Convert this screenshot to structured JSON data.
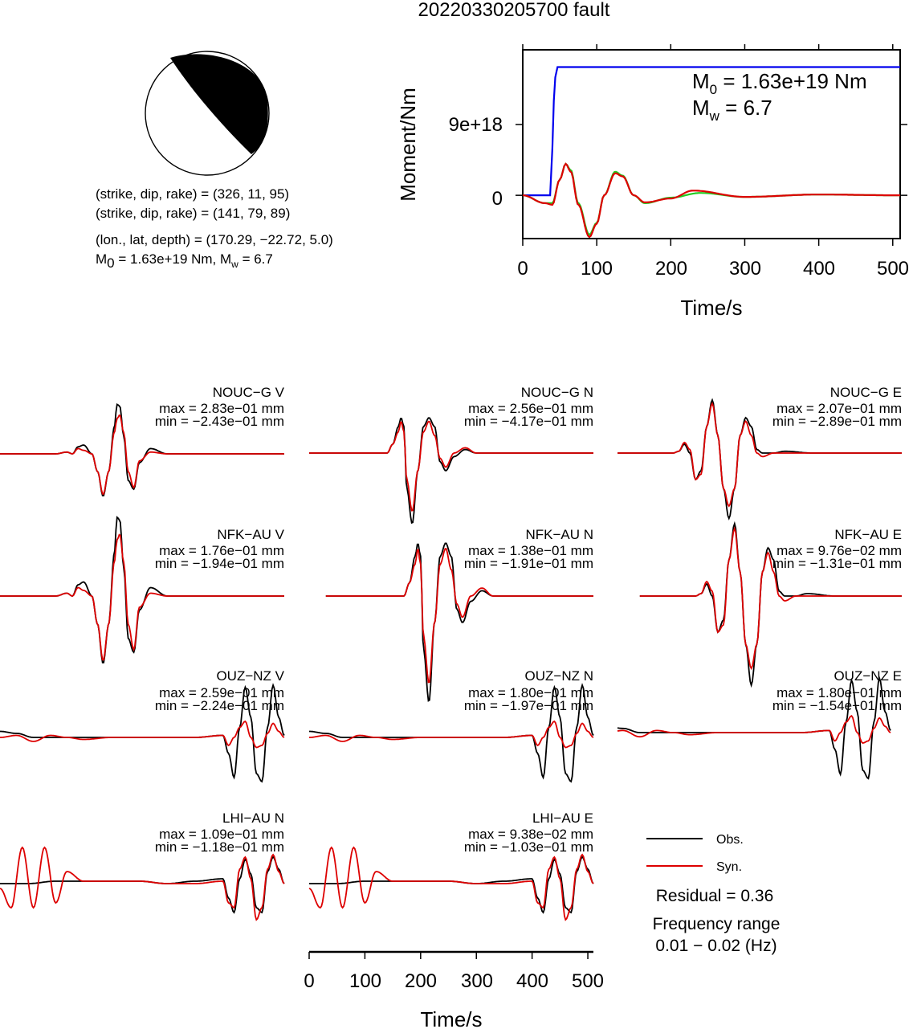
{
  "title": "20220330205700 fault",
  "solution": {
    "line1": "(strike, dip, rake) = (326, 11, 95)",
    "line2": "(strike, dip, rake) = (141, 79, 89)",
    "line3": "(lon., lat, depth) = (170.29, −22.72, 5.0)",
    "m0_prefix": "M",
    "m0_sub": "0",
    "m0_value": " = 1.63e+19 Nm, M",
    "mw_sub": "w",
    "mw_value": " = 6.7"
  },
  "moment_plot": {
    "ylabel": "Moment/Nm",
    "xlabel": "Time/s",
    "m0_label": "M",
    "m0_sub": "0",
    "m0_text": " = 1.63e+19 Nm",
    "mw_label": "M",
    "mw_sub": "w",
    "mw_text": " = 6.7",
    "ytick_labels": [
      "9e+18",
      "0"
    ],
    "xtick_labels": [
      "0",
      "100",
      "200",
      "300",
      "400",
      "500"
    ],
    "colors": {
      "moment": "#0000ee",
      "rate_a": "#22cc22",
      "rate_b": "#dd0000"
    }
  },
  "stations": [
    {
      "name": "NOUC−G V",
      "max": "max = 2.83e−01 mm",
      "min": "min = −2.43e−01 mm"
    },
    {
      "name": "NOUC−G N",
      "max": "max = 2.56e−01 mm",
      "min": "min = −4.17e−01 mm"
    },
    {
      "name": "NOUC−G E",
      "max": "max = 2.07e−01 mm",
      "min": "min = −2.89e−01 mm"
    },
    {
      "name": "NFK−AU V",
      "max": "max = 1.76e−01 mm",
      "min": "min = −1.94e−01 mm"
    },
    {
      "name": "NFK−AU N",
      "max": "max = 1.38e−01 mm",
      "min": "min = −1.91e−01 mm"
    },
    {
      "name": "NFK−AU E",
      "max": "max = 9.76e−02 mm",
      "min": "min = −1.31e−01 mm"
    },
    {
      "name": "OUZ−NZ V",
      "max": "max = 2.59e−01 mm",
      "min": "min = −2.24e−01 mm"
    },
    {
      "name": "OUZ−NZ N",
      "max": "max = 1.80e−01 mm",
      "min": "min = −1.97e−01 mm"
    },
    {
      "name": "OUZ−NZ E",
      "max": "max = 1.80e−01 mm",
      "min": "min = −1.54e−01 mm"
    },
    {
      "name": "LHI−AU N",
      "max": "max = 1.09e−01 mm",
      "min": "min = −1.18e−01 mm"
    },
    {
      "name": "LHI−AU E",
      "max": "max = 9.38e−02 mm",
      "min": "min = −1.03e−01 mm"
    }
  ],
  "waveform_axis": {
    "xlabel": "Time/s",
    "xtick_labels": [
      "0",
      "100",
      "200",
      "300",
      "400",
      "500"
    ]
  },
  "legend": {
    "obs": "Obs.",
    "syn": "Syn.",
    "obs_color": "#000000",
    "syn_color": "#dd0000"
  },
  "residual": "Residual = 0.36",
  "freq_title": "Frequency range",
  "freq_value": "0.01 − 0.02 (Hz)",
  "chart_data": [
    {
      "type": "line",
      "title": "",
      "xlabel": "Time/s",
      "ylabel": "Moment/Nm",
      "xlim": [
        0,
        510
      ],
      "ylim": [
        -5.5e+18,
        1.85e+19
      ],
      "series": [
        {
          "x": [
            0,
            37,
            40,
            42,
            44,
            47,
            48,
            510
          ],
          "values": [
            0,
            0,
            6e+18,
            1.2e+19,
            1.5e+19,
            1.63e+19,
            1.63e+19,
            1.63e+19
          ]
        },
        {
          "x": [
            0,
            30,
            40,
            50,
            58,
            65,
            75,
            90,
            100,
            110,
            125,
            135,
            150,
            165,
            200,
            240,
            300,
            400,
            510
          ],
          "values": [
            0,
            -1e+18,
            -1e+18,
            2e+18,
            4e+18,
            3.2e+18,
            -1e+18,
            -5e+18,
            -3.5e+18,
            0,
            3e+18,
            2.5e+18,
            0,
            -1e+18,
            -3e+17,
            3e+17,
            -2e+17,
            1e+17,
            0
          ]
        },
        {
          "x": [
            0,
            30,
            40,
            50,
            58,
            65,
            75,
            90,
            100,
            110,
            125,
            135,
            150,
            165,
            200,
            230,
            300,
            400,
            510
          ],
          "values": [
            0,
            -1e+18,
            -1.2e+18,
            2e+18,
            4e+18,
            3e+18,
            -1.2e+18,
            -5.3e+18,
            -3.6e+18,
            0,
            2.8e+18,
            2.4e+18,
            0,
            -9e+17,
            -4e+17,
            6e+17,
            -2e+17,
            1e+17,
            0
          ]
        }
      ]
    },
    {
      "type": "line",
      "title": "NOUC−G V",
      "xlim": [
        0,
        510
      ],
      "ylim": [
        -0.43,
        0.43
      ],
      "series": [
        {
          "name": "Obs.",
          "x": [
            0,
            100,
            120,
            130,
            140,
            150,
            165,
            175,
            185,
            195,
            205,
            210,
            215,
            222,
            230,
            240,
            250,
            270,
            300,
            350,
            400,
            510
          ],
          "values": [
            0,
            0,
            0.01,
            0,
            0.04,
            0.05,
            0,
            -0.1,
            -0.24,
            -0.1,
            0.15,
            0.28,
            0.27,
            0.1,
            -0.15,
            -0.2,
            -0.05,
            0.03,
            0,
            0,
            0,
            0
          ]
        },
        {
          "name": "Syn.",
          "x": [
            0,
            100,
            120,
            130,
            140,
            150,
            165,
            175,
            185,
            195,
            205,
            210,
            215,
            222,
            230,
            240,
            250,
            270,
            300,
            350,
            400,
            510
          ],
          "values": [
            0,
            0,
            0.01,
            0,
            0.03,
            0.02,
            0,
            -0.1,
            -0.23,
            -0.1,
            0.12,
            0.2,
            0.22,
            0.12,
            -0.1,
            -0.19,
            -0.04,
            0.01,
            0,
            0,
            0,
            0
          ]
        }
      ]
    },
    {
      "type": "line",
      "title": "NOUC−G N",
      "xlim": [
        0,
        510
      ],
      "ylim": [
        -0.43,
        0.43
      ],
      "series": [
        {
          "name": "Obs.",
          "x": [
            0,
            100,
            140,
            150,
            160,
            165,
            170,
            175,
            185,
            195,
            205,
            215,
            225,
            235,
            245,
            260,
            280,
            300,
            350,
            400,
            510
          ],
          "values": [
            0,
            0,
            0,
            0.05,
            0.15,
            0.2,
            0.15,
            -0.2,
            -0.4,
            -0.1,
            0.15,
            0.2,
            0.15,
            -0.05,
            -0.1,
            -0.02,
            0.02,
            0,
            0,
            0,
            0
          ]
        },
        {
          "name": "Syn.",
          "x": [
            0,
            100,
            140,
            150,
            160,
            165,
            170,
            175,
            185,
            195,
            205,
            215,
            225,
            235,
            245,
            260,
            280,
            300,
            350,
            400,
            510
          ],
          "values": [
            0,
            0,
            0,
            0.05,
            0.12,
            0.18,
            0.12,
            -0.15,
            -0.33,
            -0.1,
            0.12,
            0.18,
            0.1,
            -0.03,
            -0.08,
            0,
            0.03,
            0,
            0,
            0,
            0
          ]
        }
      ]
    },
    {
      "type": "line",
      "title": "NOUC−G E",
      "xlim": [
        0,
        510
      ],
      "ylim": [
        -0.43,
        0.43
      ],
      "series": [
        {
          "name": "Obs.",
          "x": [
            0,
            100,
            110,
            120,
            130,
            140,
            150,
            160,
            170,
            180,
            190,
            200,
            210,
            220,
            230,
            240,
            250,
            260,
            280,
            300,
            350,
            400,
            510
          ],
          "values": [
            0,
            0,
            0.01,
            0.05,
            0,
            -0.15,
            -0.1,
            0.15,
            0.3,
            0.1,
            -0.2,
            -0.37,
            -0.2,
            0.1,
            0.2,
            0.15,
            0.02,
            0,
            0,
            0.01,
            0,
            0,
            0
          ]
        },
        {
          "name": "Syn.",
          "x": [
            0,
            100,
            110,
            120,
            130,
            140,
            150,
            160,
            170,
            180,
            190,
            200,
            210,
            220,
            230,
            240,
            250,
            260,
            280,
            300,
            350,
            400,
            510
          ],
          "values": [
            0,
            0,
            0.01,
            0.06,
            0.02,
            -0.15,
            -0.12,
            0.15,
            0.28,
            0.1,
            -0.2,
            -0.3,
            -0.2,
            0.1,
            0.18,
            0.1,
            0,
            -0.02,
            0,
            0,
            0,
            0,
            0
          ]
        }
      ]
    },
    {
      "type": "line",
      "title": "OUZ−NZ V",
      "xlim": [
        0,
        510
      ],
      "ylim": [
        -0.3,
        0.3
      ],
      "series": [
        {
          "name": "Obs.",
          "x": [
            0,
            30,
            60,
            90,
            120,
            150,
            200,
            250,
            300,
            350,
            400,
            410,
            420,
            430,
            440,
            450,
            460,
            470,
            480,
            490,
            500,
            510
          ],
          "values": [
            0.03,
            0.02,
            0,
            0,
            0,
            0,
            0,
            0,
            0,
            0,
            0.01,
            -0.08,
            -0.2,
            0.05,
            0.25,
            0.1,
            -0.18,
            -0.22,
            0.05,
            0.26,
            0.1,
            0.01
          ]
        },
        {
          "name": "Syn.",
          "x": [
            0,
            30,
            60,
            90,
            120,
            150,
            200,
            250,
            300,
            350,
            400,
            410,
            420,
            430,
            440,
            450,
            460,
            470,
            480,
            490,
            500,
            510
          ],
          "values": [
            0,
            0.01,
            -0.02,
            0.01,
            0,
            -0.01,
            0,
            0,
            0,
            0,
            0.01,
            -0.04,
            0,
            0.05,
            0.08,
            0,
            -0.05,
            -0.04,
            0.02,
            0.07,
            0.03,
            0
          ]
        }
      ]
    },
    {
      "type": "line",
      "title": "LHI−AU N",
      "xlim": [
        0,
        510
      ],
      "ylim": [
        -0.3,
        0.3
      ],
      "series": [
        {
          "name": "Obs.",
          "x": [
            0,
            50,
            100,
            150,
            200,
            250,
            300,
            350,
            400,
            410,
            420,
            430,
            440,
            450,
            460,
            470,
            480,
            490,
            500,
            510
          ],
          "values": [
            0,
            0,
            0.01,
            0.01,
            0.01,
            0.01,
            0,
            0.01,
            0.02,
            -0.06,
            -0.12,
            0.02,
            0.1,
            0.04,
            -0.1,
            -0.12,
            0.05,
            0.11,
            0.06,
            0
          ]
        },
        {
          "name": "Syn.",
          "x": [
            0,
            20,
            40,
            60,
            80,
            100,
            120,
            150,
            200,
            250,
            300,
            350,
            400,
            410,
            420,
            430,
            440,
            450,
            460,
            470,
            480,
            490,
            500,
            510
          ],
          "values": [
            -0.02,
            -0.1,
            0.15,
            -0.1,
            0.15,
            -0.08,
            0.05,
            0.01,
            0.01,
            0.01,
            0,
            0,
            0.01,
            -0.08,
            -0.1,
            0.06,
            0.11,
            0.02,
            -0.15,
            -0.1,
            0.06,
            0.12,
            0.05,
            0
          ]
        }
      ]
    }
  ]
}
